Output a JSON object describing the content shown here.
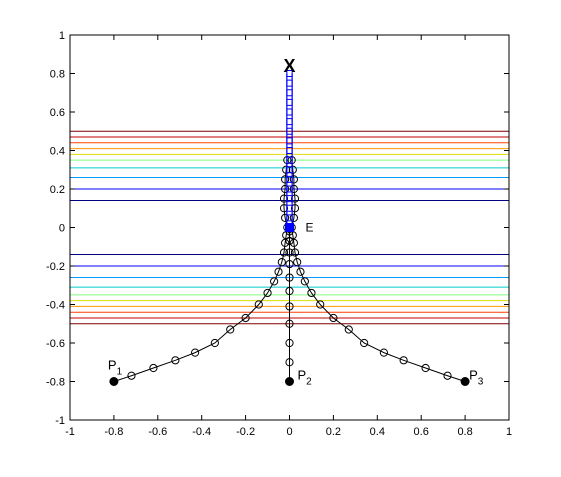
{
  "chart_data": {
    "type": "scatter",
    "title": "",
    "xlabel": "",
    "ylabel": "",
    "xlim": [
      -1,
      1
    ],
    "ylim": [
      -1,
      1
    ],
    "grid": false,
    "box": true,
    "xticks": [
      "-1",
      "-0.8",
      "-0.6",
      "-0.4",
      "-0.2",
      "0",
      "0.2",
      "0.4",
      "0.6",
      "0.8",
      "1"
    ],
    "yticks": [
      "1",
      "0.8",
      "0.6",
      "0.4",
      "0.2",
      "0",
      "-0.2",
      "-0.4",
      "-0.6",
      "-0.8",
      "-1"
    ],
    "xtick_values": [
      -1,
      -0.8,
      -0.6,
      -0.4,
      -0.2,
      0,
      0.2,
      0.4,
      0.6,
      0.8,
      1
    ],
    "ytick_values": [
      1,
      0.8,
      0.6,
      0.4,
      0.2,
      0,
      -0.2,
      -0.4,
      -0.6,
      -0.8,
      -1
    ],
    "contour_levels": [
      {
        "y": 0.5,
        "color": "#800000"
      },
      {
        "y": 0.47,
        "color": "#c00000"
      },
      {
        "y": 0.44,
        "color": "#ff4000"
      },
      {
        "y": 0.41,
        "color": "#ff9900"
      },
      {
        "y": 0.38,
        "color": "#dddd00"
      },
      {
        "y": 0.35,
        "color": "#80ff80"
      },
      {
        "y": 0.31,
        "color": "#00cccc"
      },
      {
        "y": 0.26,
        "color": "#0099ff"
      },
      {
        "y": 0.2,
        "color": "#0000ff"
      },
      {
        "y": 0.14,
        "color": "#000080"
      },
      {
        "y": -0.14,
        "color": "#000080"
      },
      {
        "y": -0.2,
        "color": "#0000ff"
      },
      {
        "y": -0.26,
        "color": "#0099ff"
      },
      {
        "y": -0.31,
        "color": "#00cccc"
      },
      {
        "y": -0.35,
        "color": "#80ff80"
      },
      {
        "y": -0.38,
        "color": "#dddd00"
      },
      {
        "y": -0.41,
        "color": "#ff9900"
      },
      {
        "y": -0.44,
        "color": "#ff4000"
      },
      {
        "y": -0.47,
        "color": "#c00000"
      },
      {
        "y": -0.5,
        "color": "#800000"
      }
    ],
    "anchors": [
      {
        "name": "P1",
        "label_main": "P",
        "label_sub": "1",
        "x": -0.8,
        "y": -0.8
      },
      {
        "name": "P2",
        "label_main": "P",
        "label_sub": "2",
        "x": 0,
        "y": -0.8
      },
      {
        "name": "P3",
        "label_main": "P",
        "label_sub": "3",
        "x": 0.8,
        "y": -0.8
      }
    ],
    "chain_left": [
      [
        -0.8,
        -0.8
      ],
      [
        -0.72,
        -0.77
      ],
      [
        -0.62,
        -0.73
      ],
      [
        -0.52,
        -0.69
      ],
      [
        -0.43,
        -0.65
      ],
      [
        -0.34,
        -0.6
      ],
      [
        -0.27,
        -0.53
      ],
      [
        -0.2,
        -0.47
      ],
      [
        -0.14,
        -0.4
      ],
      [
        -0.1,
        -0.34
      ],
      [
        -0.07,
        -0.28
      ],
      [
        -0.05,
        -0.23
      ],
      [
        -0.035,
        -0.18
      ],
      [
        -0.025,
        -0.13
      ],
      [
        -0.02,
        -0.08
      ],
      [
        -0.015,
        -0.04
      ],
      [
        -0.01,
        0
      ],
      [
        -0.02,
        0.05
      ],
      [
        -0.025,
        0.1
      ],
      [
        -0.025,
        0.15
      ],
      [
        -0.02,
        0.2
      ],
      [
        -0.02,
        0.25
      ],
      [
        -0.015,
        0.3
      ],
      [
        -0.01,
        0.35
      ]
    ],
    "chain_right": [
      [
        0.8,
        -0.8
      ],
      [
        0.72,
        -0.77
      ],
      [
        0.62,
        -0.73
      ],
      [
        0.52,
        -0.69
      ],
      [
        0.43,
        -0.65
      ],
      [
        0.34,
        -0.6
      ],
      [
        0.27,
        -0.53
      ],
      [
        0.2,
        -0.47
      ],
      [
        0.14,
        -0.4
      ],
      [
        0.1,
        -0.34
      ],
      [
        0.07,
        -0.28
      ],
      [
        0.05,
        -0.23
      ],
      [
        0.035,
        -0.18
      ],
      [
        0.025,
        -0.13
      ],
      [
        0.02,
        -0.08
      ],
      [
        0.015,
        -0.04
      ],
      [
        0.01,
        0
      ],
      [
        0.02,
        0.05
      ],
      [
        0.025,
        0.1
      ],
      [
        0.025,
        0.15
      ],
      [
        0.02,
        0.2
      ],
      [
        0.02,
        0.25
      ],
      [
        0.015,
        0.3
      ],
      [
        0.01,
        0.35
      ]
    ],
    "chain_center": [
      [
        0,
        -0.8
      ],
      [
        0,
        -0.7
      ],
      [
        0,
        -0.6
      ],
      [
        0,
        -0.5
      ],
      [
        0,
        -0.41
      ],
      [
        0,
        -0.33
      ],
      [
        0,
        -0.26
      ],
      [
        0,
        -0.19
      ],
      [
        0,
        -0.13
      ],
      [
        0,
        -0.07
      ],
      [
        0,
        -0.02
      ]
    ],
    "blue_path_points": [
      [
        0,
        0
      ],
      [
        0,
        0.05
      ],
      [
        0,
        0.1
      ],
      [
        0,
        0.15
      ],
      [
        0,
        0.2
      ],
      [
        0,
        0.25
      ],
      [
        0,
        0.3
      ],
      [
        0,
        0.35
      ],
      [
        0,
        0.4
      ],
      [
        0,
        0.45
      ],
      [
        0,
        0.5
      ],
      [
        0,
        0.55
      ],
      [
        0,
        0.6
      ],
      [
        0,
        0.65
      ],
      [
        0,
        0.7
      ],
      [
        0,
        0.75
      ],
      [
        0,
        0.8
      ]
    ],
    "blue_color": "#0000ff",
    "blue_band_half_width": 0.012,
    "target": {
      "label": "X",
      "x": 0,
      "y": 0.85
    },
    "end_effector": {
      "label": "E",
      "x": 0,
      "y": 0
    }
  }
}
